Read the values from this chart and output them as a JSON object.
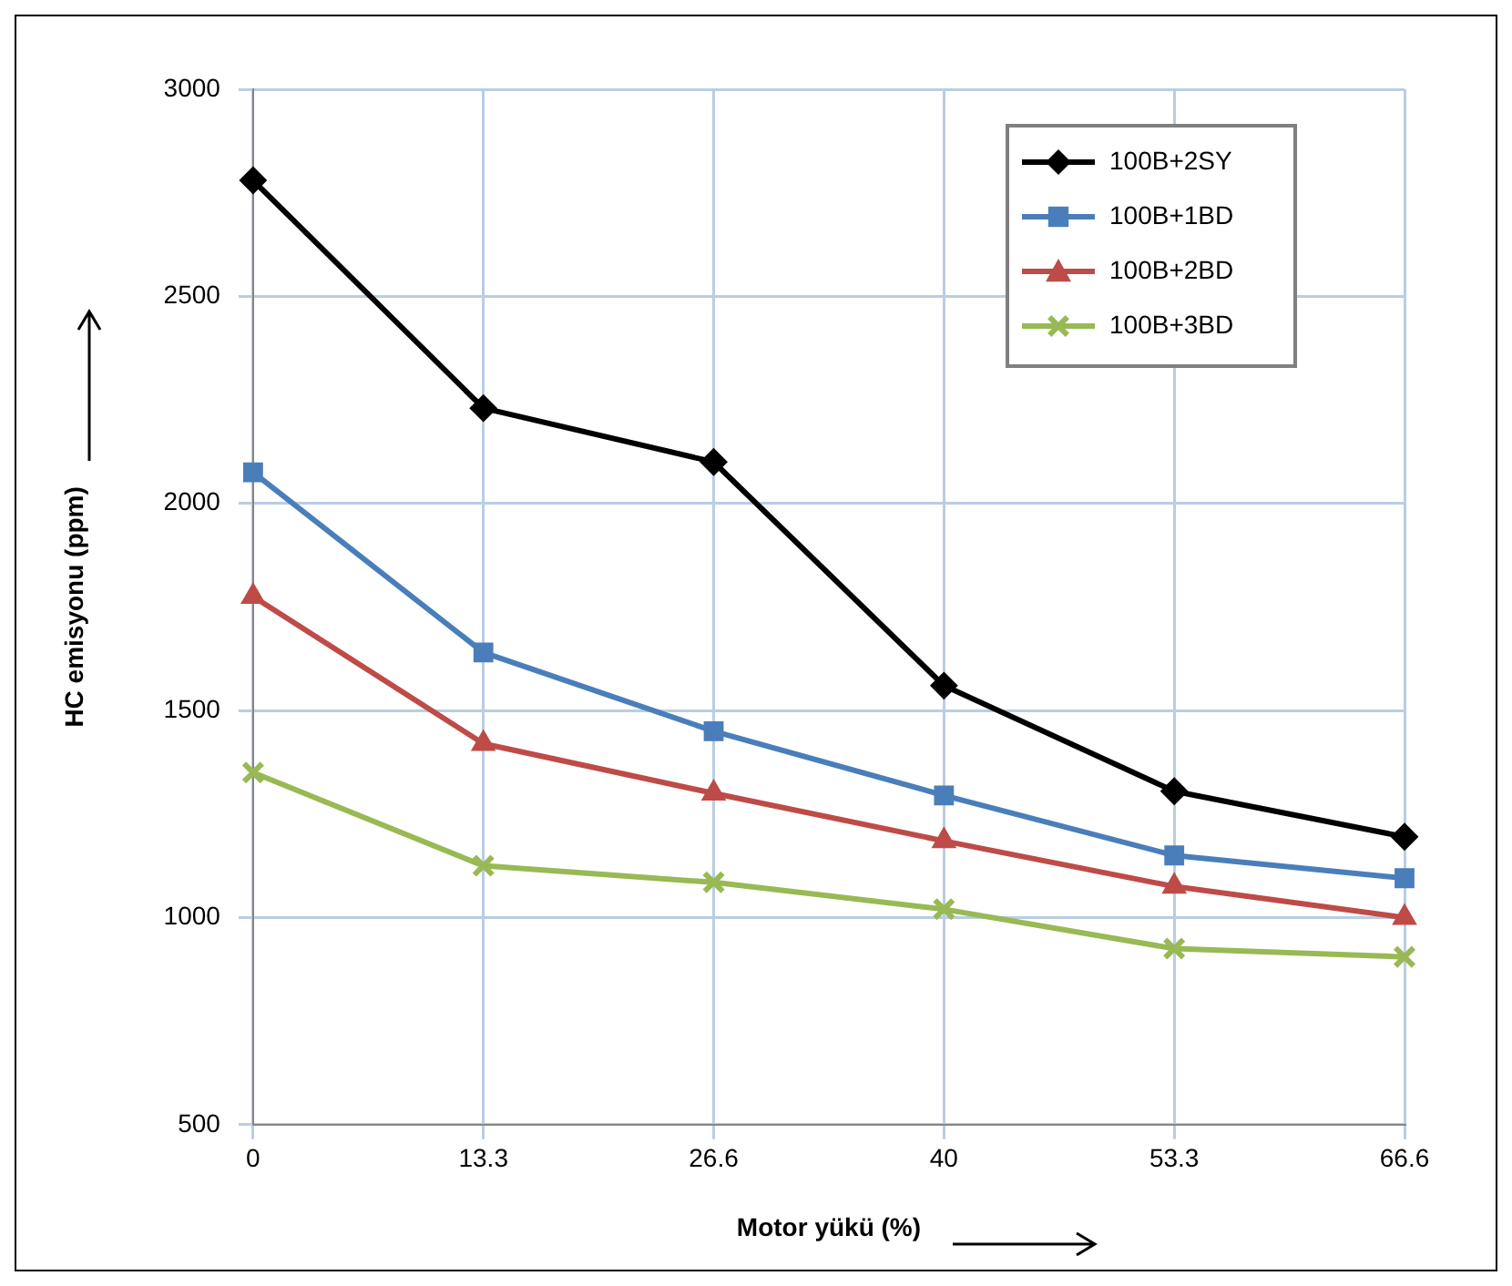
{
  "chart_data": {
    "type": "line",
    "xlabel": "Motor yükü (%)",
    "ylabel": "HC emisyonu (ppm)",
    "categories": [
      "0",
      "13.3",
      "26.6",
      "40",
      "53.3",
      "66.6"
    ],
    "ylim": [
      500,
      3000
    ],
    "yticks": [
      500,
      1000,
      1500,
      2000,
      2500,
      3000
    ],
    "grid": true,
    "legend": "top right",
    "line_style": "solid",
    "series": [
      {
        "name": "100B+2SY",
        "color": "#000000",
        "marker": "diamond",
        "values": [
          2780,
          2230,
          2100,
          1560,
          1305,
          1195
        ]
      },
      {
        "name": "100B+1BD",
        "color": "#4a7ebb",
        "marker": "square",
        "values": [
          2075,
          1640,
          1450,
          1295,
          1150,
          1095
        ]
      },
      {
        "name": "100B+2BD",
        "color": "#be4b48",
        "marker": "triangle",
        "values": [
          1775,
          1420,
          1300,
          1185,
          1075,
          1000
        ]
      },
      {
        "name": "100B+3BD",
        "color": "#98b954",
        "marker": "cross",
        "values": [
          1350,
          1125,
          1085,
          1020,
          925,
          905
        ]
      }
    ]
  }
}
